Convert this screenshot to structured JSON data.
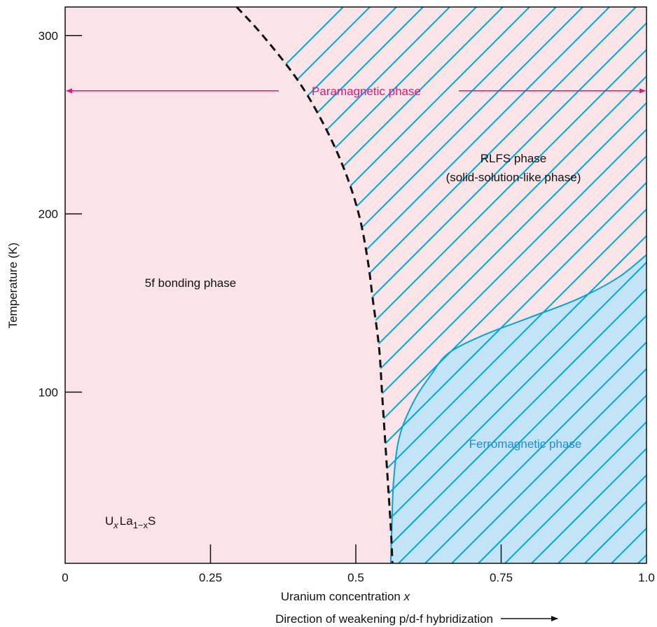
{
  "chart_data": {
    "type": "area",
    "title": "",
    "xlabel": "Uranium concentration x",
    "xlabel_text": "Uranium concentration ",
    "xlabel_var": "x",
    "ylabel": "Temperature (K)",
    "xlim": [
      0,
      1.0
    ],
    "ylim": [
      4,
      316
    ],
    "x_ticks": [
      0,
      0.25,
      0.5,
      0.75,
      1.0
    ],
    "x_tick_labels": [
      "0",
      "0.25",
      "0.5",
      "0.75",
      "1.0"
    ],
    "y_ticks": [
      100,
      200,
      300
    ],
    "y_tick_labels": [
      "100",
      "200",
      "300"
    ],
    "grid": false,
    "direction_label": "Direction of weakening p/d-f hybridization",
    "compound_label": {
      "base1": "U",
      "sub1": "x",
      "base2": "La",
      "sub2": "1−x",
      "base3": "S"
    },
    "series": [
      {
        "name": "5f bonding / RLFS boundary",
        "style": "dashed",
        "points": [
          [
            0.295,
            316
          ],
          [
            0.34,
            300
          ],
          [
            0.4,
            275
          ],
          [
            0.445,
            250
          ],
          [
            0.48,
            225
          ],
          [
            0.505,
            200
          ],
          [
            0.52,
            175
          ],
          [
            0.53,
            150
          ],
          [
            0.54,
            125
          ],
          [
            0.545,
            100
          ],
          [
            0.55,
            75
          ],
          [
            0.555,
            50
          ],
          [
            0.56,
            25
          ],
          [
            0.563,
            4
          ]
        ]
      },
      {
        "name": "Ferromagnetic phase boundary",
        "style": "solid",
        "points": [
          [
            0.56,
            4
          ],
          [
            0.562,
            25
          ],
          [
            0.565,
            50
          ],
          [
            0.575,
            75
          ],
          [
            0.6,
            95
          ],
          [
            0.63,
            110
          ],
          [
            0.66,
            122
          ],
          [
            0.72,
            132
          ],
          [
            0.8,
            142
          ],
          [
            0.88,
            152
          ],
          [
            0.95,
            164
          ],
          [
            1.0,
            177
          ]
        ]
      }
    ],
    "regions": [
      {
        "label": "5f bonding phase",
        "color": "#fbe4e8"
      },
      {
        "label": "RLFS phase",
        "label2": "(solid-solution-like phase)",
        "color": "#fbe4e8",
        "hatch": "#0aa0d8"
      },
      {
        "label": "Ferromagnetic phase",
        "color": "#c2e4f6",
        "text_color": "#1a8fcf"
      },
      {
        "label": "Paramagnetic phase",
        "color": "#e0157f",
        "range": [
          0,
          1.0
        ],
        "y": 269
      }
    ],
    "colors": {
      "pink_fill": "#fbe4e8",
      "blue_fill": "#c2e4f6",
      "hatch": "#0aa0d8",
      "magenta": "#e0157f",
      "axis": "#111111"
    }
  }
}
